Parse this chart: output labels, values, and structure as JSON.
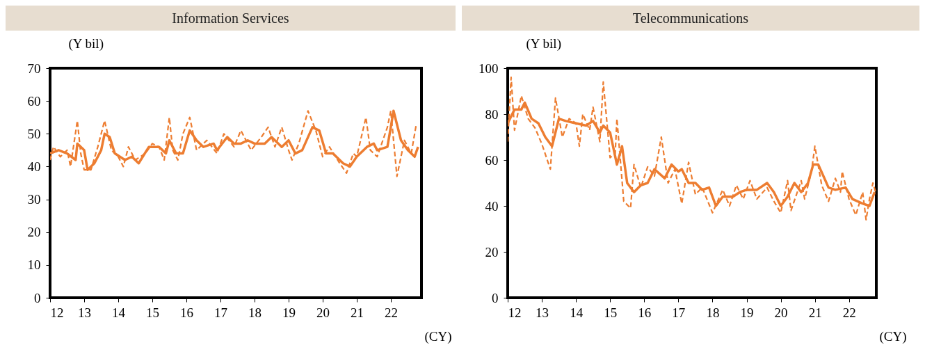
{
  "chart_data": [
    {
      "type": "line",
      "title": "Information Services",
      "ylabel": "(Y bil)",
      "xlabel": "(CY)",
      "xlim": [
        12,
        22.9
      ],
      "xticks": [
        12,
        13,
        14,
        15,
        16,
        17,
        18,
        19,
        20,
        21,
        22
      ],
      "ylim": [
        0,
        70
      ],
      "yticks": [
        0,
        10,
        20,
        30,
        40,
        50,
        60,
        70
      ],
      "series": [
        {
          "color": "#ed7d31",
          "line_style": "solid",
          "x": [
            12.0,
            12.25,
            12.5,
            12.75,
            12.8,
            13.0,
            13.1,
            13.3,
            13.5,
            13.6,
            13.75,
            13.9,
            14.2,
            14.4,
            14.6,
            14.9,
            15.2,
            15.4,
            15.5,
            15.7,
            15.9,
            16.1,
            16.3,
            16.5,
            16.8,
            16.9,
            17.2,
            17.4,
            17.6,
            17.8,
            18.0,
            18.3,
            18.5,
            18.8,
            19.0,
            19.2,
            19.4,
            19.7,
            19.9,
            20.1,
            20.3,
            20.6,
            20.8,
            21.0,
            21.3,
            21.5,
            21.6,
            21.9,
            22.0,
            22.08,
            22.3,
            22.5,
            22.7,
            22.8
          ],
          "values": [
            44,
            45,
            44,
            42,
            47,
            45,
            39,
            41,
            45,
            50,
            49,
            44,
            42,
            43,
            41,
            46,
            46,
            44,
            48,
            44,
            44,
            51,
            48,
            46,
            47,
            45,
            49,
            47,
            47,
            48,
            47,
            47,
            49,
            46,
            48,
            44,
            45,
            52,
            51,
            44,
            44,
            41,
            40,
            43,
            46,
            47,
            45,
            46,
            52,
            57,
            48,
            45,
            43,
            46
          ]
        },
        {
          "color": "#ed7d31",
          "line_style": "dashed",
          "x": [
            12.0,
            12.1,
            12.3,
            12.5,
            12.6,
            12.8,
            12.9,
            13.0,
            13.2,
            13.4,
            13.6,
            13.8,
            14.0,
            14.15,
            14.3,
            14.5,
            14.8,
            15.0,
            15.2,
            15.35,
            15.5,
            15.6,
            15.75,
            15.9,
            16.1,
            16.3,
            16.6,
            16.9,
            17.1,
            17.4,
            17.6,
            17.9,
            18.2,
            18.4,
            18.6,
            18.8,
            19.0,
            19.1,
            19.3,
            19.57,
            19.8,
            20.0,
            20.2,
            20.5,
            20.7,
            20.9,
            21.0,
            21.27,
            21.4,
            21.6,
            21.9,
            22.0,
            22.18,
            22.4,
            22.6,
            22.75
          ],
          "values": [
            42,
            46,
            43,
            45,
            40,
            54,
            44,
            39,
            39,
            46,
            54,
            45,
            43,
            40,
            46,
            42,
            44,
            47,
            46,
            42,
            55,
            45,
            42,
            50,
            55,
            45,
            48,
            44,
            50,
            46,
            51,
            45,
            49,
            52,
            46,
            52,
            45,
            42,
            47,
            57,
            51,
            43,
            46,
            41,
            38,
            44,
            43,
            55,
            45,
            43,
            52,
            57,
            37,
            48,
            44,
            53
          ]
        }
      ]
    },
    {
      "type": "line",
      "title": "Telecommunications",
      "ylabel": "(Y bil)",
      "xlabel": "(CY)",
      "xlim": [
        12,
        22.8
      ],
      "xticks": [
        12,
        13,
        14,
        15,
        16,
        17,
        18,
        19,
        20,
        21,
        22
      ],
      "ylim": [
        0,
        100
      ],
      "yticks": [
        0,
        20,
        40,
        60,
        80,
        100
      ],
      "series": [
        {
          "color": "#ed7d31",
          "line_style": "solid",
          "x": [
            12.0,
            12.2,
            12.4,
            12.5,
            12.7,
            12.9,
            13.1,
            13.3,
            13.5,
            13.7,
            14.0,
            14.3,
            14.5,
            14.7,
            14.8,
            15.0,
            15.2,
            15.35,
            15.5,
            15.7,
            15.9,
            16.1,
            16.3,
            16.6,
            16.8,
            17.0,
            17.1,
            17.3,
            17.5,
            17.7,
            17.9,
            18.1,
            18.3,
            18.6,
            18.8,
            19.0,
            19.3,
            19.6,
            19.8,
            20.0,
            20.2,
            20.4,
            20.6,
            20.8,
            20.95,
            21.1,
            21.4,
            21.6,
            21.9,
            22.1,
            22.4,
            22.6,
            22.75
          ],
          "values": [
            76,
            82,
            82,
            85,
            78,
            76,
            70,
            66,
            78,
            77,
            76,
            75,
            77,
            72,
            75,
            72,
            58,
            66,
            50,
            46,
            49,
            50,
            56,
            52,
            58,
            55,
            56,
            50,
            50,
            47,
            48,
            40,
            44,
            44,
            46,
            47,
            47,
            50,
            46,
            40,
            44,
            50,
            46,
            50,
            58,
            58,
            48,
            47,
            48,
            43,
            41,
            40,
            46
          ]
        },
        {
          "color": "#ed7d31",
          "line_style": "dashed",
          "x": [
            12.0,
            12.1,
            12.2,
            12.4,
            12.6,
            12.8,
            13.0,
            13.25,
            13.4,
            13.6,
            13.8,
            14.0,
            14.1,
            14.2,
            14.4,
            14.5,
            14.7,
            14.8,
            15.0,
            15.15,
            15.2,
            15.4,
            15.6,
            15.7,
            15.9,
            16.1,
            16.3,
            16.5,
            16.7,
            16.9,
            17.1,
            17.3,
            17.5,
            17.7,
            18.0,
            18.3,
            18.5,
            18.7,
            18.9,
            19.1,
            19.3,
            19.6,
            19.8,
            20.0,
            20.2,
            20.3,
            20.6,
            20.7,
            20.9,
            21.0,
            21.2,
            21.4,
            21.6,
            21.75,
            21.8,
            22.0,
            22.2,
            22.4,
            22.5,
            22.6,
            22.7,
            22.8
          ],
          "values": [
            68,
            96,
            73,
            88,
            78,
            74,
            67,
            56,
            87,
            70,
            78,
            76,
            66,
            80,
            73,
            83,
            68,
            94,
            61,
            63,
            78,
            42,
            39,
            58,
            48,
            57,
            53,
            70,
            50,
            56,
            41,
            59,
            45,
            48,
            37,
            47,
            40,
            49,
            43,
            51,
            43,
            48,
            42,
            37,
            51,
            38,
            51,
            43,
            55,
            66,
            49,
            42,
            52,
            46,
            55,
            43,
            36,
            46,
            34,
            43,
            50,
            45
          ]
        }
      ]
    }
  ]
}
